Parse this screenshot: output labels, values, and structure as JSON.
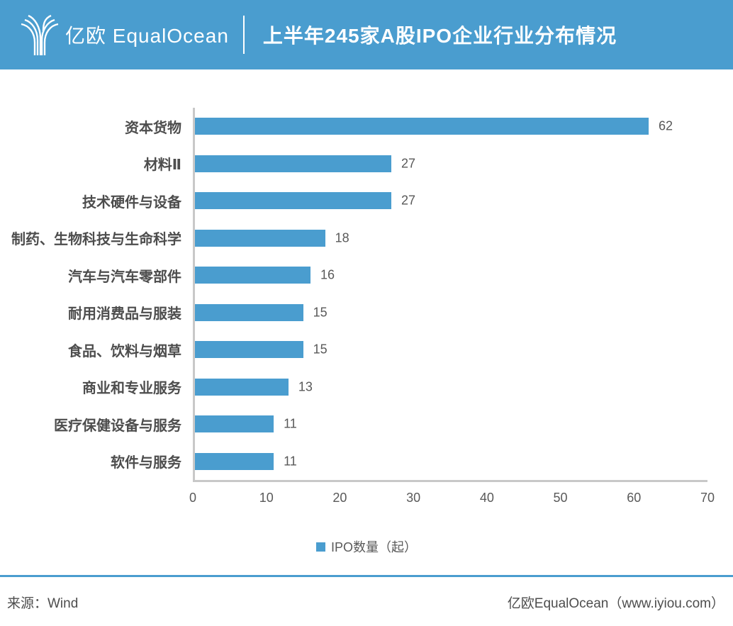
{
  "header": {
    "logo_icon": "equalocean-tulip-icon",
    "logo_text": "亿欧 EqualOcean",
    "title": "上半年245家A股IPO企业行业分布情况"
  },
  "chart_data": {
    "type": "bar",
    "orientation": "horizontal",
    "title": "上半年245家A股IPO企业行业分布情况",
    "categories": [
      "资本货物",
      "材料Ⅱ",
      "技术硬件与设备",
      "制药、生物科技与生命科学",
      "汽车与汽车零部件",
      "耐用消费品与服装",
      "食品、饮料与烟草",
      "商业和专业服务",
      "医疗保健设备与服务",
      "软件与服务"
    ],
    "values": [
      62,
      27,
      27,
      18,
      16,
      15,
      15,
      13,
      11,
      11
    ],
    "xlabel": "",
    "ylabel": "",
    "xlim": [
      0,
      70
    ],
    "xticks": [
      0,
      10,
      20,
      30,
      40,
      50,
      60,
      70
    ],
    "grid": false,
    "value_labels": true,
    "legend": {
      "label": "IPO数量（起）",
      "position": "bottom"
    }
  },
  "footer": {
    "source": "来源：Wind",
    "credit": "亿欧EqualOcean（www.iyiou.com）"
  },
  "colors": {
    "accent": "#4A9DCF",
    "bar": "#4A9DCF",
    "header_bg": "#4A9DCF",
    "header_text": "#FFFFFF",
    "axis_line": "#C8C8C8",
    "category_label": "#4D4D4D",
    "value_label": "#595959",
    "tick_label": "#595959",
    "legend_text": "#595959",
    "footer_text": "#4D4D4D",
    "background": "#FFFFFF"
  }
}
